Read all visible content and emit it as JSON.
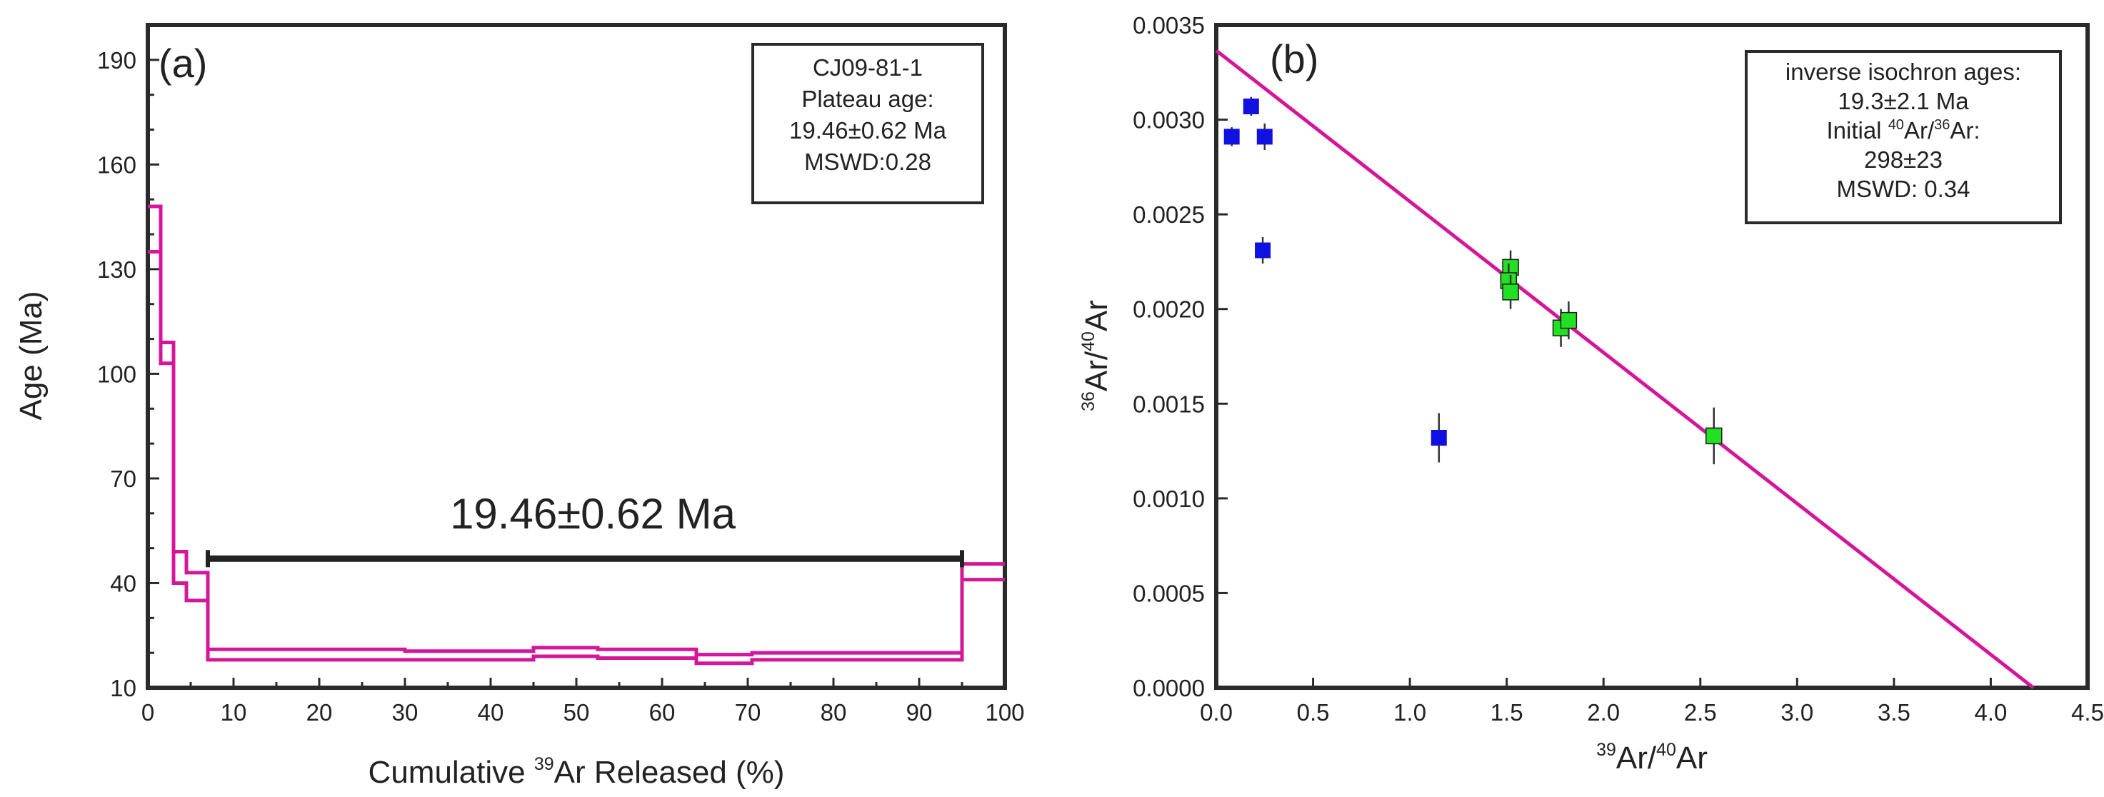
{
  "chart_data": [
    {
      "panel": "(a)",
      "type": "step",
      "xlabel_prefix": "Cumulative ",
      "xlabel_sup": "39",
      "xlabel_suffix": "Ar Released (%)",
      "ylabel": "Age (Ma)",
      "xlim": [
        0,
        100
      ],
      "ylim": [
        10,
        200
      ],
      "xticks": [
        0,
        10,
        20,
        30,
        40,
        50,
        60,
        70,
        80,
        90,
        100
      ],
      "yticks": [
        10,
        40,
        70,
        100,
        130,
        160,
        190
      ],
      "steps": [
        {
          "x0": 0,
          "x1": 1.5,
          "y_lo": 135,
          "y_hi": 148
        },
        {
          "x0": 1.5,
          "x1": 3.0,
          "y_lo": 103,
          "y_hi": 109
        },
        {
          "x0": 3.0,
          "x1": 4.5,
          "y_lo": 40,
          "y_hi": 49
        },
        {
          "x0": 4.5,
          "x1": 7.0,
          "y_lo": 35,
          "y_hi": 43
        },
        {
          "x0": 7.0,
          "x1": 30.0,
          "y_lo": 18,
          "y_hi": 21
        },
        {
          "x0": 30.0,
          "x1": 45.0,
          "y_lo": 18,
          "y_hi": 20.5
        },
        {
          "x0": 45.0,
          "x1": 52.5,
          "y_lo": 19,
          "y_hi": 21.5
        },
        {
          "x0": 52.5,
          "x1": 64.0,
          "y_lo": 18.5,
          "y_hi": 21
        },
        {
          "x0": 64.0,
          "x1": 70.5,
          "y_lo": 17,
          "y_hi": 19.5
        },
        {
          "x0": 70.5,
          "x1": 95.0,
          "y_lo": 18,
          "y_hi": 20
        },
        {
          "x0": 95.0,
          "x1": 100,
          "y_lo": 41,
          "y_hi": 45.5
        }
      ],
      "plateau": {
        "x0": 7.0,
        "x1": 95.0,
        "y": 47,
        "label": "19.46±0.62 Ma"
      },
      "legend_box": [
        "CJ09-81-1",
        "Plateau age:",
        "19.46±0.62 Ma",
        "MSWD:0.28"
      ]
    },
    {
      "panel": "(b)",
      "type": "scatter",
      "xlabel": {
        "sup1": "39",
        "t1": "Ar/",
        "sup2": "40",
        "t2": "Ar"
      },
      "ylabel": {
        "sup1": "36",
        "t1": "Ar/",
        "sup2": "40",
        "t2": "Ar"
      },
      "xlim": [
        0,
        4.5
      ],
      "ylim": [
        0,
        0.0035
      ],
      "xticks": [
        "0.0",
        "0.5",
        "1.0",
        "1.5",
        "2.0",
        "2.5",
        "3.0",
        "3.5",
        "4.0",
        "4.5"
      ],
      "yticks": [
        "0.0000",
        "0.0005",
        "0.0010",
        "0.0015",
        "0.0020",
        "0.0025",
        "0.0030",
        "0.0035"
      ],
      "series": [
        {
          "color": "#1010e0",
          "points": [
            {
              "x": 0.08,
              "y": 0.00291,
              "err": 5e-05
            },
            {
              "x": 0.18,
              "y": 0.00307,
              "err": 5e-05
            },
            {
              "x": 0.25,
              "y": 0.00291,
              "err": 7e-05
            },
            {
              "x": 0.24,
              "y": 0.00231,
              "err": 7e-05
            },
            {
              "x": 1.15,
              "y": 0.00132,
              "err": 0.00013
            }
          ]
        },
        {
          "color": "#22e022",
          "points": [
            {
              "x": 1.52,
              "y": 0.00222,
              "err": 9e-05
            },
            {
              "x": 1.51,
              "y": 0.00215,
              "err": 9e-05
            },
            {
              "x": 1.52,
              "y": 0.00209,
              "err": 9e-05
            },
            {
              "x": 1.78,
              "y": 0.0019,
              "err": 0.0001
            },
            {
              "x": 1.82,
              "y": 0.00194,
              "err": 0.0001
            },
            {
              "x": 2.57,
              "y": 0.00133,
              "err": 0.00015
            }
          ]
        }
      ],
      "fit_line": {
        "x0": 0,
        "y0": 0.003365,
        "x1": 4.22,
        "y1": 0.0
      },
      "legend_box": {
        "line1": "inverse isochron ages:",
        "line2": "19.3±2.1 Ma",
        "line3_pre": "Initial ",
        "line3_sup1": "40",
        "line3_mid": "Ar/",
        "line3_sup2": "36",
        "line3_post": "Ar:",
        "line4": "298±23",
        "line5": "MSWD: 0.34"
      }
    }
  ],
  "colors": {
    "step": "#d4179a",
    "fit": "#d4179a",
    "plateau": "#222222",
    "axis": "#2a2a2a"
  }
}
